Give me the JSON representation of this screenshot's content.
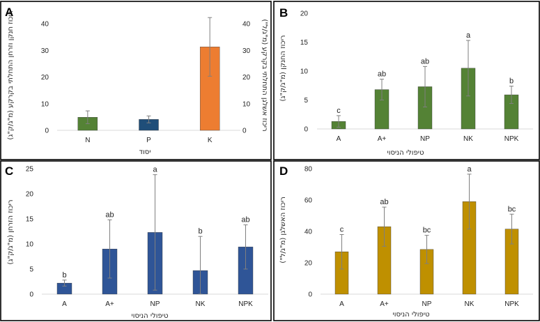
{
  "figure": {
    "panels": [
      "A",
      "B",
      "C",
      "D"
    ]
  },
  "chart_data": [
    {
      "panel": "A",
      "type": "bar",
      "categories": [
        "N",
        "P",
        "K"
      ],
      "values": [
        4.9,
        4.1,
        31.3
      ],
      "errors": [
        2.4,
        1.3,
        11
      ],
      "colors": [
        "#548235",
        "#1f4e79",
        "#ed7d31"
      ],
      "xlabel": "יסוד",
      "ylabel_left": "ריכוז חנקן וזרחן התחלתי בקרקע (מ\"ג/ק\"ג)",
      "ylabel_right": "ריכוז אשלגן התחלתי בקרקע (מ\"ג/ל\")",
      "ylim": [
        0,
        40
      ],
      "yticks": [
        0,
        10,
        20,
        30,
        40
      ],
      "yticks_right": [
        0,
        10,
        20,
        30,
        40
      ]
    },
    {
      "panel": "B",
      "type": "bar",
      "categories": [
        "A",
        "A+",
        "NP",
        "NK",
        "NPK"
      ],
      "values": [
        1.3,
        6.8,
        7.3,
        10.5,
        5.9
      ],
      "errors": [
        1.0,
        1.8,
        3.5,
        4.8,
        1.5
      ],
      "significance": [
        "c",
        "ab",
        "ab",
        "a",
        "b"
      ],
      "color": "#548235",
      "xlabel": "טיפולי הניסוי",
      "ylabel": "ריכוז החנקן (מ\"ג/ק\"ג)",
      "ylim": [
        0,
        20
      ],
      "yticks": [
        0,
        5,
        10,
        15,
        20
      ]
    },
    {
      "panel": "C",
      "type": "bar",
      "categories": [
        "A",
        "A+",
        "NP",
        "NK",
        "NPK"
      ],
      "values": [
        2.2,
        9.0,
        12.3,
        4.7,
        9.4
      ],
      "errors": [
        0.6,
        5.8,
        11.5,
        6.8,
        4.4
      ],
      "significance": [
        "b",
        "ab",
        "a",
        "b",
        "ab"
      ],
      "color": "#2f5597",
      "xlabel": "טיפולי הניסוי",
      "ylabel": "ריכוז הזרחן (מ\"ג/ק\"ג)",
      "ylim": [
        0,
        25
      ],
      "yticks": [
        0,
        5,
        10,
        15,
        20,
        25
      ]
    },
    {
      "panel": "D",
      "type": "bar",
      "categories": [
        "A",
        "A+",
        "NP",
        "NK",
        "NPK"
      ],
      "values": [
        27,
        43,
        28.5,
        59,
        41.5
      ],
      "errors": [
        11,
        12.5,
        9,
        17.5,
        9.5
      ],
      "significance": [
        "c",
        "ab",
        "bc",
        "a",
        "bc"
      ],
      "color": "#bf9000",
      "xlabel": "טיפולי הניסוי",
      "ylabel": "ריכוז האשלגן (מ\"ג/ל\")",
      "ylim": [
        0,
        80
      ],
      "yticks": [
        0,
        20,
        40,
        60,
        80
      ]
    }
  ]
}
